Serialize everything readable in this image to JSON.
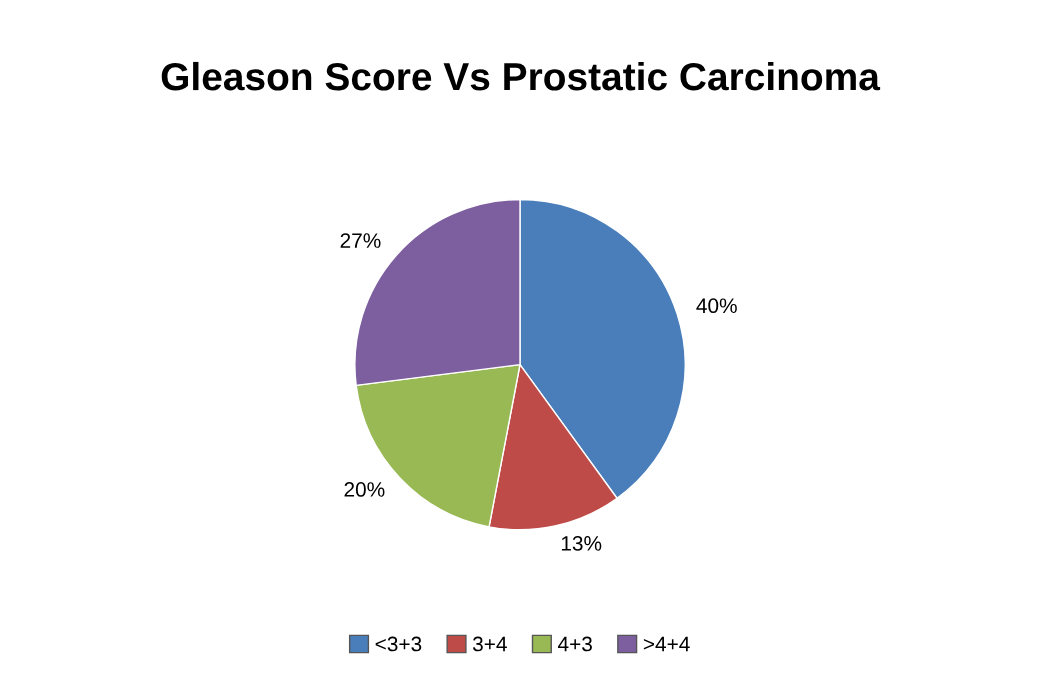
{
  "chart_data": {
    "type": "pie",
    "title": "Gleason Score Vs Prostatic Carcinoma",
    "categories": [
      "<3+3",
      "3+4",
      "4+3",
      ">4+4"
    ],
    "values": [
      40,
      13,
      20,
      27
    ],
    "value_labels": [
      "40%",
      "13%",
      "20%",
      "27%"
    ],
    "colors": [
      "#4a7ebb",
      "#be4b48",
      "#98b954",
      "#7d5fa0"
    ],
    "legend": "bottom"
  }
}
